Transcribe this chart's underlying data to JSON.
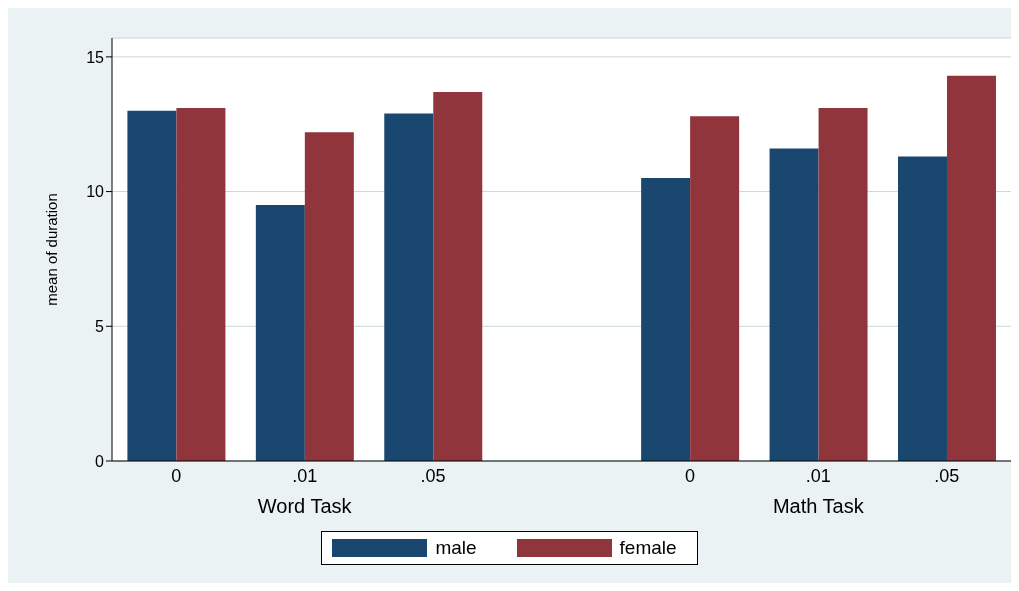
{
  "chart_data": {
    "type": "bar",
    "ylabel": "mean of duration",
    "categories": [
      "0",
      ".01",
      ".05",
      null,
      "0",
      ".01",
      ".05"
    ],
    "series": [
      {
        "name": "male",
        "color": "#1a476f",
        "values": [
          13.0,
          9.5,
          12.9,
          null,
          10.5,
          11.6,
          11.3
        ]
      },
      {
        "name": "female",
        "color": "#90353b",
        "values": [
          13.1,
          12.2,
          13.7,
          null,
          12.8,
          13.1,
          14.3
        ]
      }
    ],
    "annotations": [
      "Word Task",
      "Math Task"
    ],
    "ylim": [
      0,
      15.7
    ],
    "yticks": [
      0,
      5,
      10,
      15
    ],
    "grid": "y",
    "legend": "bottom"
  }
}
